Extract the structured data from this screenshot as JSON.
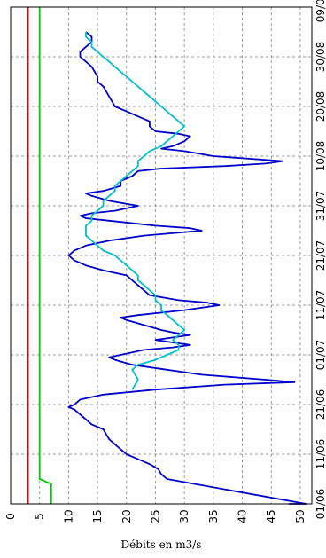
{
  "chart_data": {
    "type": "line",
    "orientation": "rotated-90",
    "title": "",
    "xlabel": "",
    "ylabel": "Débits en m3/s",
    "ylim": [
      0,
      52
    ],
    "yticks": [
      0,
      5,
      10,
      15,
      20,
      25,
      30,
      35,
      40,
      45,
      50
    ],
    "x_tick_labels": [
      "01/06",
      "11/06",
      "21/06",
      "01/07",
      "11/07",
      "21/07",
      "31/07",
      "10/08",
      "20/08",
      "30/08",
      "09/09"
    ],
    "x_tick_days": [
      0,
      10,
      20,
      30,
      40,
      50,
      60,
      70,
      80,
      90,
      100
    ],
    "xlim_days": [
      0,
      100
    ],
    "grid": true,
    "legend": "none",
    "series": [
      {
        "color": "#0000cc",
        "points": [
          [
            0,
            48
          ],
          [
            0,
            51
          ],
          [
            5,
            27
          ],
          [
            6,
            26
          ],
          [
            7,
            25.5
          ],
          [
            8,
            24
          ],
          [
            9,
            22
          ],
          [
            10,
            20
          ],
          [
            11,
            19
          ],
          [
            12,
            18
          ],
          [
            13,
            17
          ],
          [
            14,
            16.5
          ],
          [
            15,
            16
          ],
          [
            16,
            14
          ],
          [
            17,
            13
          ],
          [
            18,
            12
          ],
          [
            19,
            11
          ],
          [
            19.5,
            10
          ],
          [
            20,
            11
          ],
          [
            21,
            12
          ],
          [
            22,
            16
          ],
          [
            23,
            25
          ],
          [
            24,
            37
          ],
          [
            24.5,
            49
          ],
          [
            25,
            44
          ],
          [
            26,
            33
          ],
          [
            27,
            27
          ],
          [
            28,
            21
          ],
          [
            29,
            18
          ],
          [
            29.5,
            17
          ],
          [
            30,
            19
          ],
          [
            31,
            23
          ],
          [
            31.5,
            28
          ],
          [
            32,
            31
          ],
          [
            32.5,
            28
          ],
          [
            33,
            25
          ],
          [
            33.5,
            28
          ],
          [
            34,
            31
          ],
          [
            34.5,
            28
          ],
          [
            35,
            26
          ],
          [
            36,
            23
          ],
          [
            37,
            20
          ],
          [
            37.5,
            19
          ],
          [
            38,
            22
          ],
          [
            39,
            30
          ],
          [
            40,
            36
          ],
          [
            40.5,
            34
          ],
          [
            41,
            29
          ],
          [
            42,
            24
          ],
          [
            43,
            23
          ],
          [
            44,
            22
          ],
          [
            45,
            21
          ],
          [
            46,
            20
          ],
          [
            47,
            16
          ],
          [
            48,
            13
          ],
          [
            49,
            11
          ],
          [
            50,
            10
          ],
          [
            51,
            11
          ],
          [
            52,
            13
          ],
          [
            53,
            17
          ],
          [
            54,
            23
          ],
          [
            55,
            33
          ],
          [
            55.5,
            31
          ],
          [
            56,
            25
          ],
          [
            57,
            17
          ],
          [
            57.5,
            13
          ],
          [
            58,
            12
          ],
          [
            58.5,
            14
          ],
          [
            59,
            18
          ],
          [
            60,
            22
          ],
          [
            61,
            17
          ],
          [
            62,
            14
          ],
          [
            62.5,
            13
          ],
          [
            63,
            16
          ],
          [
            64,
            19
          ],
          [
            65,
            19
          ],
          [
            66,
            21
          ],
          [
            67,
            22
          ],
          [
            67.5,
            26
          ],
          [
            68,
            37
          ],
          [
            68.5,
            44
          ],
          [
            69,
            47
          ],
          [
            70,
            35
          ],
          [
            71,
            30
          ],
          [
            71.5,
            26
          ],
          [
            72,
            28
          ],
          [
            73,
            30
          ],
          [
            74,
            31
          ],
          [
            74.5,
            29
          ],
          [
            75,
            25
          ],
          [
            76,
            24
          ],
          [
            77,
            24
          ],
          [
            78,
            22
          ],
          [
            79,
            20
          ],
          [
            80,
            18
          ],
          [
            82,
            17
          ],
          [
            84,
            16
          ],
          [
            85,
            15
          ],
          [
            86,
            15
          ],
          [
            88,
            14
          ],
          [
            89,
            13
          ],
          [
            90,
            12
          ],
          [
            91,
            12
          ],
          [
            92,
            13
          ],
          [
            93,
            14
          ],
          [
            94,
            14
          ],
          [
            95,
            13
          ]
        ]
      },
      {
        "color": "#00bfcf",
        "points": [
          [
            23,
            21
          ],
          [
            25,
            22
          ],
          [
            27,
            21
          ],
          [
            28,
            22
          ],
          [
            29,
            25
          ],
          [
            30,
            27
          ],
          [
            31,
            29
          ],
          [
            32,
            29
          ],
          [
            33,
            28
          ],
          [
            34,
            29
          ],
          [
            35,
            30
          ],
          [
            36,
            29
          ],
          [
            37,
            28
          ],
          [
            38,
            27
          ],
          [
            39,
            26
          ],
          [
            40,
            26
          ],
          [
            41,
            25
          ],
          [
            42,
            25
          ],
          [
            43,
            24
          ],
          [
            44,
            23
          ],
          [
            45,
            22
          ],
          [
            46,
            22
          ],
          [
            47,
            21
          ],
          [
            48,
            20
          ],
          [
            49,
            19
          ],
          [
            50,
            18
          ],
          [
            51,
            16
          ],
          [
            52,
            15
          ],
          [
            53,
            14
          ],
          [
            54,
            13
          ],
          [
            55,
            13
          ],
          [
            56,
            13
          ],
          [
            57,
            14
          ],
          [
            58,
            14
          ],
          [
            59,
            15
          ],
          [
            60,
            16
          ],
          [
            61,
            16
          ],
          [
            62,
            17
          ],
          [
            63,
            18
          ],
          [
            64,
            18
          ],
          [
            65,
            19
          ],
          [
            66,
            20
          ],
          [
            67,
            21
          ],
          [
            68,
            22
          ],
          [
            69,
            22
          ],
          [
            70,
            23
          ],
          [
            71,
            24
          ],
          [
            72,
            26
          ],
          [
            73,
            27
          ],
          [
            74,
            28
          ],
          [
            75,
            29
          ],
          [
            76,
            30
          ],
          [
            77,
            29
          ],
          [
            78,
            28
          ],
          [
            79,
            27
          ],
          [
            80,
            26
          ],
          [
            81,
            25
          ],
          [
            82,
            24
          ],
          [
            83,
            23
          ],
          [
            84,
            22
          ],
          [
            85,
            21
          ],
          [
            86,
            20
          ],
          [
            87,
            19
          ],
          [
            88,
            18
          ],
          [
            89,
            17
          ],
          [
            90,
            16
          ],
          [
            91,
            15
          ],
          [
            92,
            14
          ],
          [
            93,
            14
          ],
          [
            94,
            13
          ],
          [
            95,
            13
          ]
        ]
      },
      {
        "color": "#00cc00",
        "points": [
          [
            0,
            7
          ],
          [
            4,
            7
          ],
          [
            5,
            5
          ],
          [
            100,
            5
          ]
        ]
      },
      {
        "color": "#dd0000",
        "points": [
          [
            0,
            3
          ],
          [
            100,
            3
          ]
        ]
      }
    ]
  }
}
